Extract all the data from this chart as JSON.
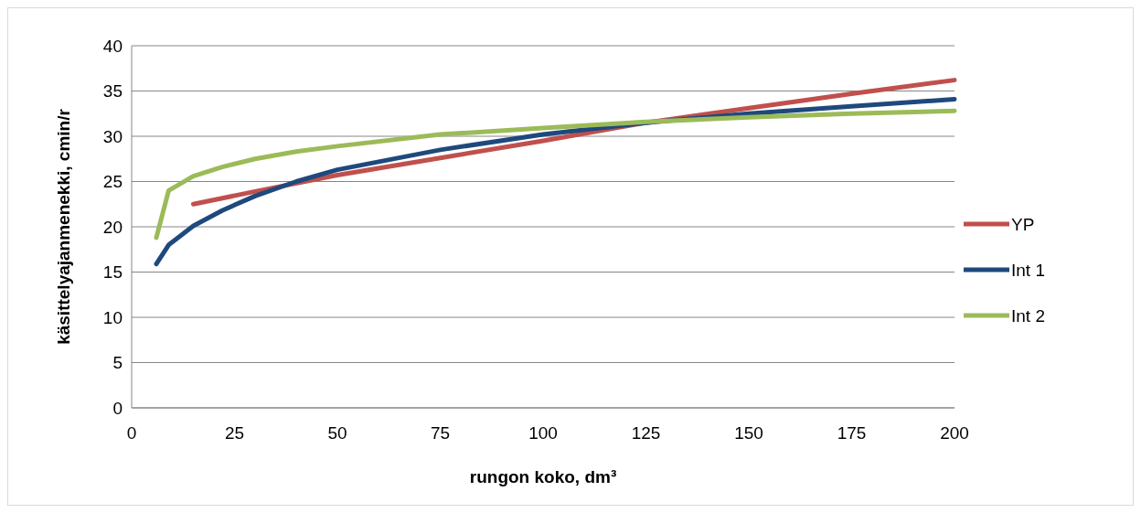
{
  "chart_data": {
    "type": "line",
    "xlabel": "rungon koko, dm³",
    "ylabel": "käsittelyajanmenekki, cmin/r",
    "xlim": [
      0,
      200
    ],
    "xticks": [
      0,
      25,
      50,
      75,
      100,
      125,
      150,
      175,
      200
    ],
    "ylim": [
      0,
      40
    ],
    "yticks": [
      0,
      5,
      10,
      15,
      20,
      25,
      30,
      35,
      40
    ],
    "grid": "y",
    "legend": "right",
    "marker": "none",
    "line_style": "solid",
    "series": [
      {
        "name": "YP",
        "color": "#c0504d",
        "x": [
          15,
          30,
          50,
          75,
          100,
          125,
          150,
          175,
          200
        ],
        "values": [
          22.5,
          23.9,
          25.7,
          27.6,
          29.5,
          31.5,
          33.1,
          34.7,
          36.2
        ]
      },
      {
        "name": "Int 1",
        "color": "#1f497d",
        "x": [
          6,
          9,
          15,
          22,
          30,
          40,
          50,
          75,
          100,
          125,
          150,
          175,
          200
        ],
        "values": [
          15.9,
          18,
          20.1,
          21.8,
          23.4,
          25,
          26.3,
          28.5,
          30.2,
          31.5,
          32.5,
          33.3,
          34.1
        ]
      },
      {
        "name": "Int 2",
        "color": "#9bbb59",
        "x": [
          6,
          9,
          15,
          22,
          30,
          40,
          50,
          75,
          100,
          125,
          150,
          175,
          200
        ],
        "values": [
          18.8,
          24,
          25.6,
          26.6,
          27.5,
          28.3,
          28.9,
          30.2,
          30.9,
          31.6,
          32.1,
          32.5,
          32.8
        ]
      }
    ]
  }
}
